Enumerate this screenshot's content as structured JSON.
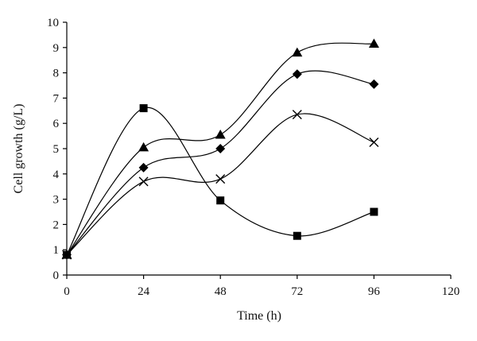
{
  "chart_data": {
    "type": "line",
    "title": "",
    "xlabel": "Time (h)",
    "ylabel": "Cell growth (g/L)",
    "xlim": [
      0,
      120
    ],
    "ylim": [
      0,
      10
    ],
    "xticks": [
      0,
      24,
      48,
      72,
      96,
      120
    ],
    "yticks": [
      0,
      1,
      2,
      3,
      4,
      5,
      6,
      7,
      8,
      9,
      10
    ],
    "grid": false,
    "legend": "none",
    "line_style": "smooth",
    "series": [
      {
        "marker": "square",
        "x": [
          0,
          24,
          48,
          72,
          96
        ],
        "y": [
          0.8,
          6.6,
          2.95,
          1.55,
          2.5
        ]
      },
      {
        "marker": "triangle",
        "x": [
          0,
          24,
          48,
          72,
          96
        ],
        "y": [
          0.8,
          5.05,
          5.55,
          8.8,
          9.15
        ]
      },
      {
        "marker": "diamond",
        "x": [
          0,
          24,
          48,
          72,
          96
        ],
        "y": [
          0.8,
          4.25,
          5.0,
          7.95,
          7.55
        ]
      },
      {
        "marker": "cross",
        "x": [
          0,
          24,
          48,
          72,
          96
        ],
        "y": [
          0.8,
          3.7,
          3.8,
          6.35,
          5.25
        ]
      }
    ]
  }
}
